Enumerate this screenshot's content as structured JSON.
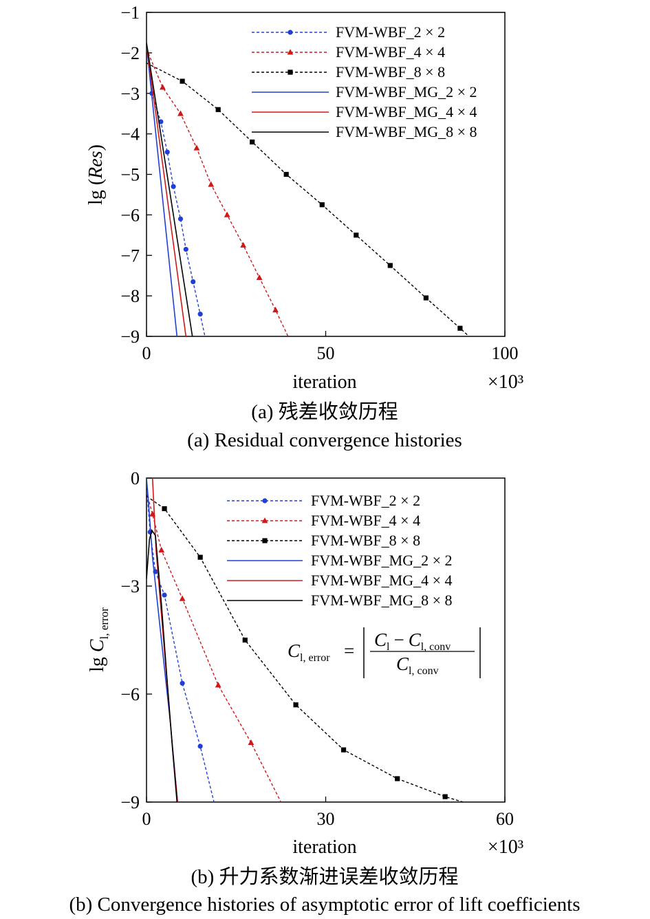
{
  "chart_data": [
    {
      "type": "line",
      "ylabel_prefix": "lg (",
      "ylabel_italic": "Res",
      "ylabel_suffix": ")",
      "xlabel": "iteration",
      "x_multiplier": "×10³",
      "xlim": [
        0,
        100
      ],
      "ylim": [
        -9,
        -1
      ],
      "xticks": [
        "0",
        "50",
        "100"
      ],
      "yticks": [
        "−1",
        "−2",
        "−3",
        "−4",
        "−5",
        "−6",
        "−7",
        "−8",
        "−9"
      ],
      "legend_position": "top-right",
      "caption_cn": "(a) 残差收敛历程",
      "caption_en": "(a) Residual convergence histories",
      "series": [
        {
          "name": "FVM-WBF_2 × 2",
          "color": "#1f3fd6",
          "style": "dotted",
          "marker": "circle",
          "x": [
            0,
            1.5,
            4,
            5.8,
            7.5,
            9.5,
            11,
            13,
            15,
            16.3
          ],
          "y": [
            -1.8,
            -3.0,
            -3.7,
            -4.45,
            -5.3,
            -6.1,
            -6.85,
            -7.65,
            -8.45,
            -9.0
          ]
        },
        {
          "name": "FVM-WBF_4 × 4",
          "color": "#d01818",
          "style": "dotted",
          "marker": "triangle",
          "x": [
            0,
            4.5,
            9.5,
            14,
            18,
            22.5,
            27,
            31.5,
            36,
            39.5
          ],
          "y": [
            -1.9,
            -2.85,
            -3.5,
            -4.35,
            -5.25,
            -6.0,
            -6.75,
            -7.55,
            -8.35,
            -9.0
          ]
        },
        {
          "name": "FVM-WBF_8 × 8",
          "color": "#000000",
          "style": "dotted",
          "marker": "square",
          "x": [
            0,
            10,
            20,
            29.5,
            39,
            49,
            58.5,
            68,
            78,
            87.5,
            90
          ],
          "y": [
            -2.25,
            -2.7,
            -3.4,
            -4.2,
            -5.0,
            -5.75,
            -6.5,
            -7.25,
            -8.05,
            -8.8,
            -9.0
          ]
        },
        {
          "name": "FVM-WBF_MG_2 × 2",
          "color": "#1f3fd6",
          "style": "solid",
          "marker": "none",
          "x": [
            0,
            8.5
          ],
          "y": [
            -1.8,
            -9.0
          ]
        },
        {
          "name": "FVM-WBF_MG_4 × 4",
          "color": "#d01818",
          "style": "solid",
          "marker": "none",
          "x": [
            0,
            11
          ],
          "y": [
            -1.8,
            -9.0
          ]
        },
        {
          "name": "FVM-WBF_MG_8 × 8",
          "color": "#000000",
          "style": "solid",
          "marker": "none",
          "x": [
            0,
            12.8
          ],
          "y": [
            -1.75,
            -9.0
          ]
        }
      ]
    },
    {
      "type": "line",
      "ylabel_prefix": "lg ",
      "ylabel_italic": "C",
      "ylabel_sub": "l, error",
      "xlabel": "iteration",
      "x_multiplier": "×10³",
      "xlim": [
        0,
        60
      ],
      "ylim": [
        -9,
        0
      ],
      "xticks": [
        "0",
        "30",
        "60"
      ],
      "yticks": [
        "0",
        "−3",
        "−6",
        "−9"
      ],
      "legend_position": "top-right",
      "formula": {
        "lhs": "C",
        "lhs_sub": "l, error",
        "num_a": "C",
        "num_a_sub": "l",
        "minus": "−",
        "num_b": "C",
        "num_b_sub": "l, conv",
        "den": "C",
        "den_sub": "l, conv"
      },
      "caption_cn": "(b) 升力系数渐进误差收敛历程",
      "caption_en": "(b) Convergence histories of asymptotic error of lift coefficients",
      "series": [
        {
          "name": "FVM-WBF_2 × 2",
          "color": "#1f3fd6",
          "style": "dotted",
          "marker": "circle",
          "x": [
            0,
            0.6,
            1.5,
            3,
            6,
            9,
            11.3
          ],
          "y": [
            -0.2,
            -1.5,
            -2.6,
            -3.25,
            -5.7,
            -7.45,
            -9.0
          ]
        },
        {
          "name": "FVM-WBF_4 × 4",
          "color": "#d01818",
          "style": "dotted",
          "marker": "triangle",
          "x": [
            0,
            1,
            2.5,
            6,
            12,
            17.5,
            22.5
          ],
          "y": [
            -0.4,
            -1.0,
            -2.0,
            -3.35,
            -5.75,
            -7.35,
            -9.0
          ]
        },
        {
          "name": "FVM-WBF_8 × 8",
          "color": "#000000",
          "style": "dotted",
          "marker": "square",
          "x": [
            0,
            3,
            9,
            16.5,
            25,
            33,
            42,
            50,
            53
          ],
          "y": [
            -0.5,
            -0.85,
            -2.2,
            -4.5,
            -6.3,
            -7.55,
            -8.35,
            -8.85,
            -9.0
          ]
        },
        {
          "name": "FVM-WBF_MG_2 × 2",
          "color": "#1f3fd6",
          "style": "solid",
          "marker": "none",
          "x": [
            0,
            0.3,
            1,
            2.5,
            4,
            5.2
          ],
          "y": [
            0,
            -0.6,
            -2.2,
            -4.5,
            -6.8,
            -9.0
          ]
        },
        {
          "name": "FVM-WBF_MG_4 × 4",
          "color": "#d01818",
          "style": "solid",
          "marker": "none",
          "x": [
            1,
            1.6,
            2.6,
            3.6,
            4.4,
            5.2
          ],
          "y": [
            0,
            -2.0,
            -4.0,
            -6.0,
            -7.6,
            -9.0
          ]
        },
        {
          "name": "FVM-WBF_MG_8 × 8",
          "color": "#000000",
          "style": "solid",
          "marker": "none",
          "x": [
            0,
            0.5,
            0.9,
            1.5,
            2.5,
            3.4,
            4.3,
            5.1
          ],
          "y": [
            -2.8,
            -1.7,
            -1.45,
            -1.6,
            -3.5,
            -5.5,
            -7.4,
            -9.0
          ]
        }
      ]
    }
  ]
}
